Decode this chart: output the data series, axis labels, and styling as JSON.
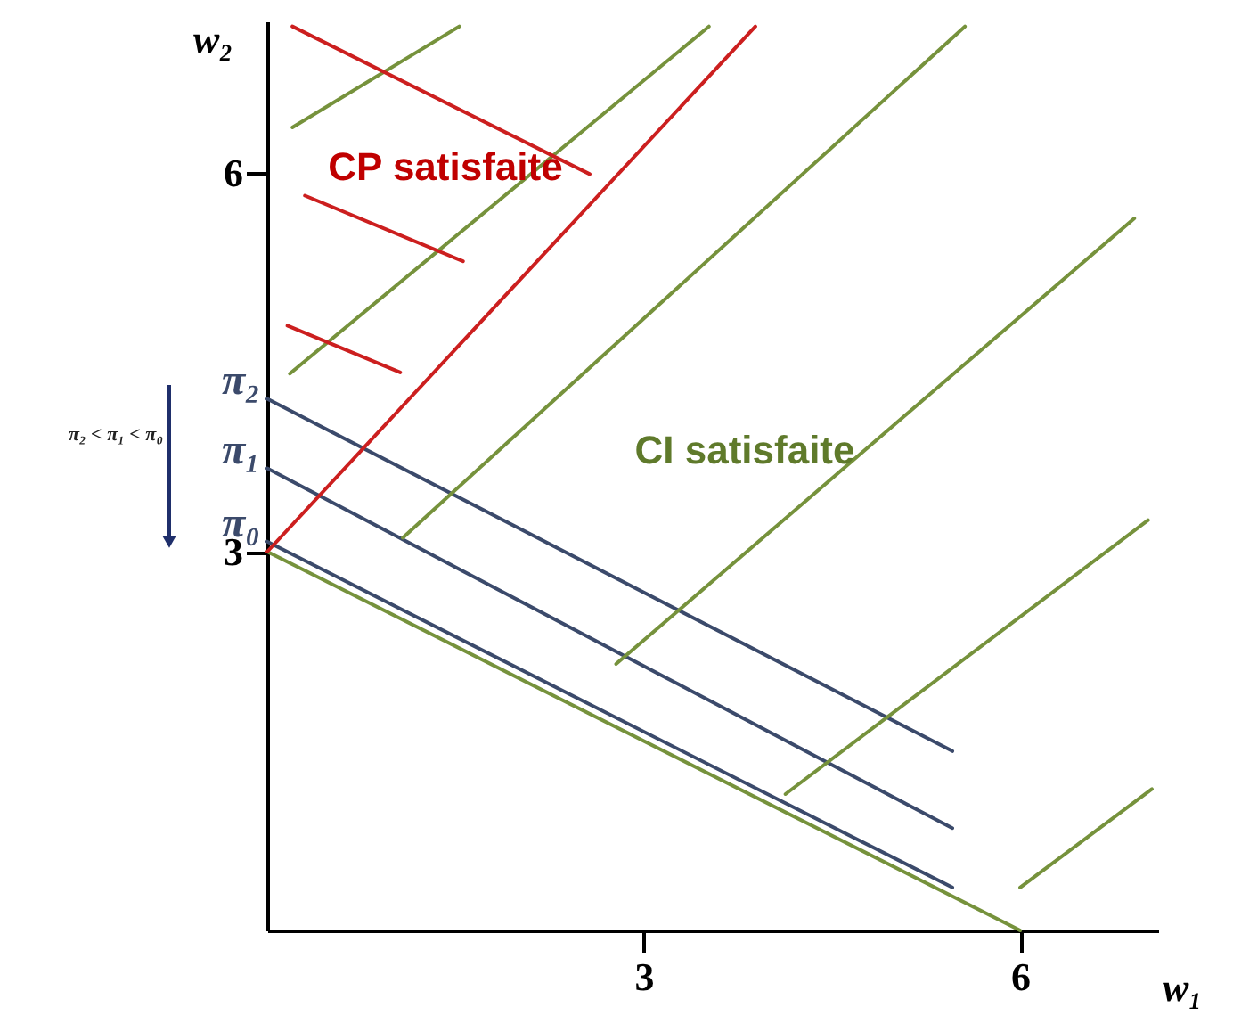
{
  "chart_data": {
    "type": "line",
    "xlabel": "w₁",
    "ylabel": "w₂",
    "xlim": [
      0,
      7.1
    ],
    "ylim": [
      0,
      7.2
    ],
    "xticks": [
      3,
      6
    ],
    "yticks": [
      3,
      6
    ],
    "series": [
      {
        "color": "#76923c",
        "x": [
          0,
          6
        ],
        "values": [
          3,
          0
        ]
      },
      {
        "name": "π₀",
        "color": "#3b4a6b",
        "x": [
          0,
          5.46
        ],
        "values": [
          3.08,
          0.34
        ]
      },
      {
        "name": "π₁",
        "color": "#3b4a6b",
        "x": [
          0,
          5.46
        ],
        "values": [
          3.66,
          0.81
        ]
      },
      {
        "name": "π₂",
        "color": "#3b4a6b",
        "x": [
          0,
          5.46
        ],
        "values": [
          4.21,
          1.42
        ]
      },
      {
        "color": "#cc1f1f",
        "x": [
          0,
          3.89
        ],
        "values": [
          3,
          7.16
        ]
      },
      {
        "color": "#76923c",
        "x": [
          0.2,
          1.53
        ],
        "values": [
          6.36,
          7.16
        ]
      },
      {
        "color": "#76923c",
        "x": [
          0.18,
          3.52
        ],
        "values": [
          4.41,
          7.16
        ]
      },
      {
        "color": "#76923c",
        "x": [
          1.08,
          5.56
        ],
        "values": [
          3.11,
          7.16
        ]
      },
      {
        "color": "#76923c",
        "x": [
          2.78,
          6.91
        ],
        "values": [
          2.11,
          5.64
        ]
      },
      {
        "color": "#76923c",
        "x": [
          4.13,
          7.02
        ],
        "values": [
          1.08,
          3.25
        ]
      },
      {
        "color": "#76923c",
        "x": [
          6,
          7.05
        ],
        "values": [
          0.34,
          1.12
        ]
      },
      {
        "color": "#cc1f1f",
        "x": [
          0.2,
          2.57
        ],
        "values": [
          7.16,
          5.99
        ]
      },
      {
        "color": "#cc1f1f",
        "x": [
          0.3,
          1.56
        ],
        "values": [
          5.82,
          5.3
        ]
      },
      {
        "color": "#cc1f1f",
        "x": [
          0.16,
          1.06
        ],
        "values": [
          4.79,
          4.42
        ]
      }
    ],
    "annotations": [
      "CP satisfaite",
      "CI satisfaite",
      "π₂ < π₁ < π₀"
    ]
  }
}
